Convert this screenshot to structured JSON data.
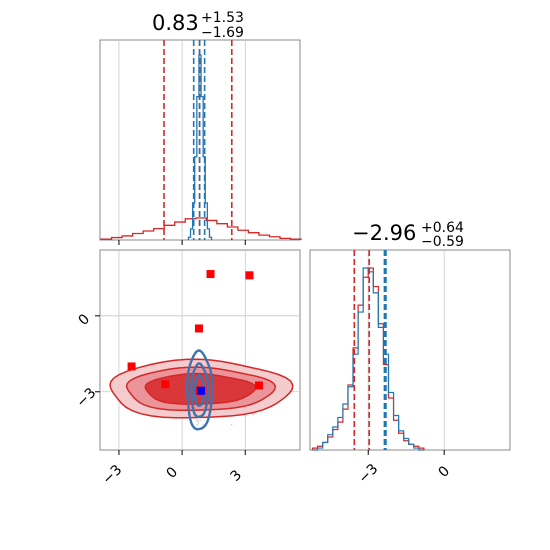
{
  "colors": {
    "red": "#d62728",
    "blue": "#1f77b4",
    "marker_red": "#ff0000",
    "marker_blue": "#0000ff",
    "grid": "#c8c8c8"
  },
  "chart_data": [
    {
      "type": "histogram",
      "panel": "top-left",
      "title": {
        "value": "0.83",
        "upper": "+1.53",
        "lower": "−1.69"
      },
      "x_range": [
        -3.9,
        5.6
      ],
      "grid": true,
      "series": [
        {
          "color": "red",
          "quantiles": [
            -0.86,
            0.83,
            2.36
          ],
          "bins_x": [
            -3.6,
            -3.1,
            -2.6,
            -2.1,
            -1.6,
            -1.1,
            -0.6,
            -0.1,
            0.4,
            0.9,
            1.4,
            1.9,
            2.4,
            2.9,
            3.4,
            3.9,
            4.4,
            4.9,
            5.4
          ],
          "counts": [
            0.1,
            0.3,
            0.5,
            0.8,
            1.1,
            1.4,
            1.8,
            2.2,
            2.6,
            2.7,
            2.4,
            2.0,
            1.6,
            1.2,
            0.9,
            0.6,
            0.4,
            0.2,
            0.1
          ]
        },
        {
          "color": "blue",
          "quantiles": [
            0.55,
            0.83,
            1.07
          ],
          "bins_x": [
            0.35,
            0.45,
            0.55,
            0.65,
            0.75,
            0.85,
            0.95,
            1.05,
            1.15,
            1.25,
            1.35
          ],
          "counts": [
            0.3,
            1.2,
            4.0,
            9.0,
            15.5,
            20.0,
            15.5,
            9.0,
            4.0,
            1.2,
            0.3
          ]
        }
      ]
    },
    {
      "type": "heatmap",
      "panel": "bottom-left",
      "x_range": [
        -3.9,
        5.6
      ],
      "y_range": [
        -5.3,
        2.6
      ],
      "x_ticks": [
        "−3",
        "0",
        "3"
      ],
      "y_ticks": [
        "−3",
        "0"
      ],
      "grid": true,
      "contours": [
        {
          "color": "red",
          "center": [
            0.8,
            -2.9
          ],
          "radii": [
            [
              4.3,
              1.15
            ],
            [
              3.5,
              0.85
            ],
            [
              2.6,
              0.6
            ]
          ]
        },
        {
          "color": "blue",
          "center": [
            0.83,
            -2.96
          ],
          "radii": [
            [
              0.6,
              1.55
            ],
            [
              0.4,
              1.05
            ],
            [
              0.22,
              0.6
            ]
          ]
        }
      ],
      "markers_red": [
        {
          "x": 1.35,
          "y": 1.65
        },
        {
          "x": 3.2,
          "y": 1.6
        },
        {
          "x": 0.8,
          "y": -0.5
        },
        {
          "x": -2.4,
          "y": -2.0
        },
        {
          "x": -0.8,
          "y": -2.7
        },
        {
          "x": 3.65,
          "y": -2.75
        },
        {
          "x": 0.83,
          "y": -2.96
        }
      ],
      "marker_blue": {
        "x": 0.9,
        "y": -2.96
      }
    },
    {
      "type": "histogram",
      "panel": "bottom-right",
      "title": {
        "value": "−2.96",
        "upper": "+0.64",
        "lower": "−0.59"
      },
      "x_range": [
        -5.3,
        2.6
      ],
      "x_ticks": [
        "−3",
        "0"
      ],
      "grid": true,
      "series": [
        {
          "color": "red",
          "quantiles": [
            -3.55,
            -2.96,
            -2.32
          ],
          "bins_x": [
            -5.1,
            -4.9,
            -4.7,
            -4.5,
            -4.3,
            -4.1,
            -3.9,
            -3.7,
            -3.5,
            -3.3,
            -3.1,
            -2.9,
            -2.7,
            -2.5,
            -2.3,
            -2.1,
            -1.9,
            -1.7,
            -1.5,
            -1.3,
            -1.1,
            -0.9
          ],
          "counts": [
            0.01,
            0.02,
            0.04,
            0.07,
            0.11,
            0.15,
            0.22,
            0.35,
            0.55,
            0.78,
            0.93,
            0.98,
            0.88,
            0.68,
            0.46,
            0.28,
            0.16,
            0.09,
            0.05,
            0.03,
            0.02,
            0.01
          ]
        },
        {
          "color": "blue",
          "quantiles": [
            -2.36,
            -2.3
          ],
          "bins_x": [
            -5.1,
            -4.9,
            -4.7,
            -4.5,
            -4.3,
            -4.1,
            -3.9,
            -3.7,
            -3.5,
            -3.3,
            -3.1,
            -2.9,
            -2.7,
            -2.5,
            -2.3,
            -2.1,
            -1.9,
            -1.7,
            -1.5,
            -1.3,
            -1.1,
            -0.9
          ],
          "counts": [
            0.0,
            0.01,
            0.04,
            0.08,
            0.12,
            0.17,
            0.24,
            0.33,
            0.5,
            0.72,
            0.95,
            0.93,
            0.82,
            0.64,
            0.5,
            0.3,
            0.18,
            0.1,
            0.06,
            0.03,
            0.01,
            0.0
          ]
        }
      ]
    }
  ]
}
